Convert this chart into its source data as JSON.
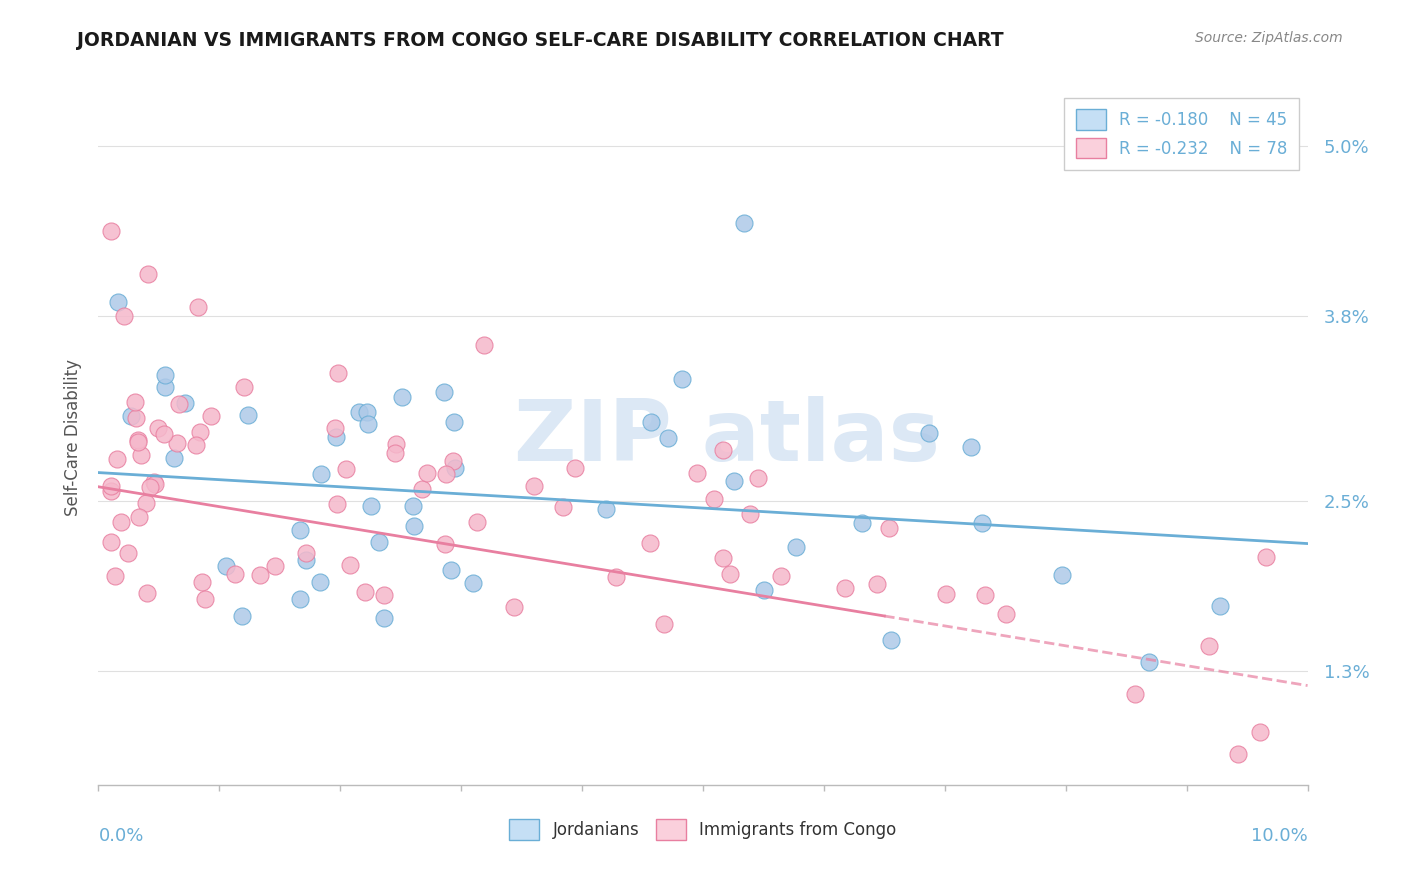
{
  "title": "JORDANIAN VS IMMIGRANTS FROM CONGO SELF-CARE DISABILITY CORRELATION CHART",
  "source": "Source: ZipAtlas.com",
  "ylabel": "Self-Care Disability",
  "yticks": [
    0.013,
    0.025,
    0.038,
    0.05
  ],
  "ytick_labels": [
    "1.3%",
    "2.5%",
    "3.8%",
    "5.0%"
  ],
  "xlim": [
    0.0,
    0.1
  ],
  "ylim": [
    0.005,
    0.054
  ],
  "jordanian_R": -0.18,
  "jordanian_N": 45,
  "congo_R": -0.232,
  "congo_N": 78,
  "blue_dot_color": "#aec9e8",
  "blue_line_color": "#6aaed6",
  "pink_dot_color": "#f5b8cb",
  "pink_line_color": "#e87fa0",
  "legend_box_blue": "#c5dff5",
  "legend_box_pink": "#fad0dc",
  "grid_color": "#e0e0e0",
  "title_color": "#1a1a1a",
  "source_color": "#888888",
  "axis_label_color": "#555555",
  "tick_label_color": "#6aaed6",
  "bottom_axis_color": "#bbbbbb",
  "watermark_color": "#dce8f5"
}
